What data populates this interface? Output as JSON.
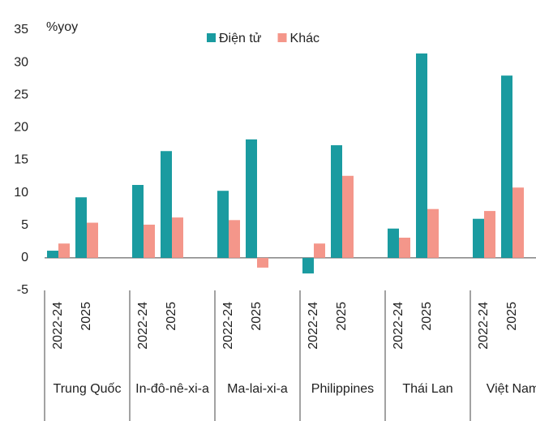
{
  "chart_data": {
    "type": "bar",
    "y_unit_label": "%yoy",
    "groups": [
      "Trung Quốc",
      "In-đô-nê-xi-a",
      "Ma-lai-xi-a",
      "Philippines",
      "Thái Lan",
      "Việt Nam"
    ],
    "categories": [
      "2022-24",
      "2025",
      "2022-24",
      "2025",
      "2022-24",
      "2025",
      "2022-24",
      "2025",
      "2022-24",
      "2025",
      "2022-24",
      "2025"
    ],
    "series": [
      {
        "name": "Điện tử",
        "color": "#1a9ba0",
        "values": [
          1.1,
          9.3,
          11.2,
          16.4,
          10.3,
          18.2,
          -2.4,
          17.3,
          4.5,
          31.4,
          6.0,
          28.0
        ]
      },
      {
        "name": "Khác",
        "color": "#f4968a",
        "values": [
          2.2,
          5.4,
          5.1,
          6.2,
          5.8,
          -1.5,
          2.2,
          12.6,
          3.1,
          7.5,
          7.2,
          10.8
        ]
      }
    ],
    "ylim": [
      -5,
      35
    ],
    "yticks": [
      -5,
      0,
      5,
      10,
      15,
      20,
      25,
      30,
      35
    ],
    "grid": false,
    "legend": "top"
  }
}
